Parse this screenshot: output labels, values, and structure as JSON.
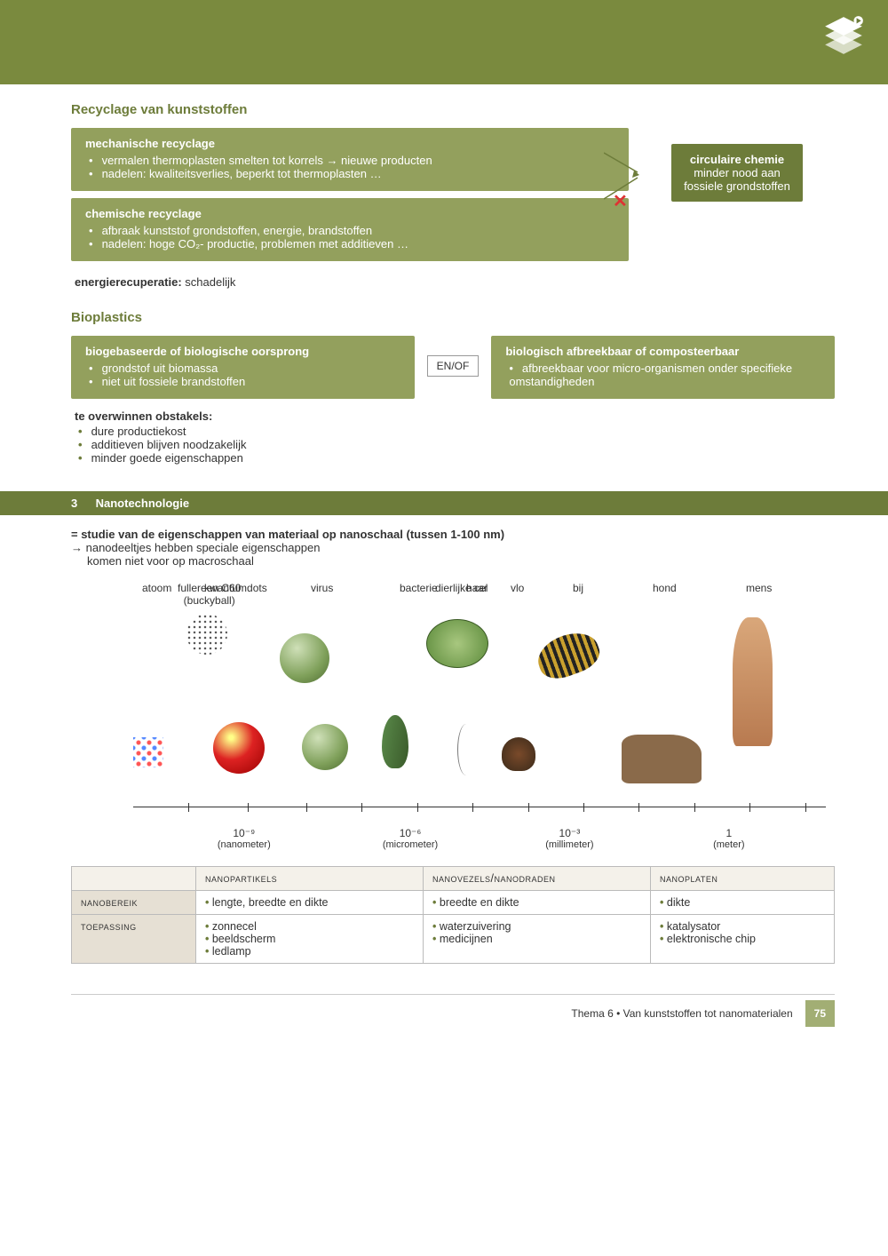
{
  "colors": {
    "olive_dark": "#6d7c3a",
    "olive_light": "#93a05d",
    "beige": "#e6e0d4",
    "red": "#d33"
  },
  "section1": {
    "title": "Recyclage van kunststoffen",
    "mech": {
      "title": "mechanische recyclage",
      "items": [
        "vermalen thermoplasten smelten tot korrels → nieuwe producten",
        "nadelen: kwaliteitsverlies, beperkt tot thermoplasten …"
      ]
    },
    "chem": {
      "title": "chemische recyclage",
      "items": [
        "afbraak kunststof grondstoffen, energie, brandstoffen",
        "nadelen: hoge CO₂- productie, problemen met additieven …"
      ]
    },
    "energy_label": "energierecuperatie:",
    "energy_value": "schadelijk",
    "circ": {
      "title": "circulaire chemie",
      "line1": "minder nood aan",
      "line2": "fossiele grondstoffen"
    },
    "x": "✕"
  },
  "bio": {
    "title": "Bioplastics",
    "left": {
      "title": "biogebaseerde of biologische oorsprong",
      "items": [
        "grondstof uit biomassa",
        "niet uit fossiele brandstoffen"
      ]
    },
    "enof": "EN/OF",
    "right": {
      "title": "biologisch afbreekbaar of composteerbaar",
      "items": [
        "afbreekbaar voor micro-organismen onder specifieke omstandigheden"
      ]
    },
    "obst": {
      "title": "te overwinnen obstakels:",
      "items": [
        "dure productiekost",
        "additieven blijven noodzakelijk",
        "minder goede eigenschappen"
      ]
    }
  },
  "nano": {
    "head_num": "3",
    "head": "Nanotechnologie",
    "def_bold": "= studie van de eigenschappen van materiaal op nanoschaal (tussen 1-100 nm)",
    "def_l2": "→ nanodeeltjes hebben speciale eigenschappen",
    "def_l3": "komen niet voor op macroschaal",
    "scale": {
      "labels": {
        "fullereen_l1": "fullereen C60",
        "fullereen_l2": "(buckyball)",
        "virus": "virus",
        "dierlijke": "dierlijke cel",
        "bacterie": "bacterie",
        "bij": "bij",
        "hond": "hond",
        "mens": "mens",
        "atoom": "atoom",
        "kwantum": "kwantumdots",
        "haar": "haar",
        "vlo": "vlo"
      },
      "axis": [
        {
          "pos_pct": 16,
          "top": "10⁻⁹",
          "bottom": "(nanometer)"
        },
        {
          "pos_pct": 40,
          "top": "10⁻⁶",
          "bottom": "(micrometer)"
        },
        {
          "pos_pct": 63,
          "top": "10⁻³",
          "bottom": "(millimeter)"
        },
        {
          "pos_pct": 86,
          "top": "1",
          "bottom": "(meter)"
        }
      ]
    },
    "table": {
      "head": [
        "",
        "nanopartikels",
        "nanovezels/nanodraden",
        "nanoplaten"
      ],
      "rows": [
        {
          "h": "nanobereik",
          "c": [
            [
              "lengte, breedte en dikte"
            ],
            [
              "breedte en dikte"
            ],
            [
              "dikte"
            ]
          ]
        },
        {
          "h": "toepassing",
          "c": [
            [
              "zonnecel",
              "beeldscherm",
              "ledlamp"
            ],
            [
              "waterzuivering",
              "medicijnen"
            ],
            [
              "katalysator",
              "elektronische chip"
            ]
          ]
        }
      ]
    }
  },
  "footer": {
    "text": "Thema 6 • Van kunststoffen tot nanomaterialen",
    "page": "75"
  }
}
